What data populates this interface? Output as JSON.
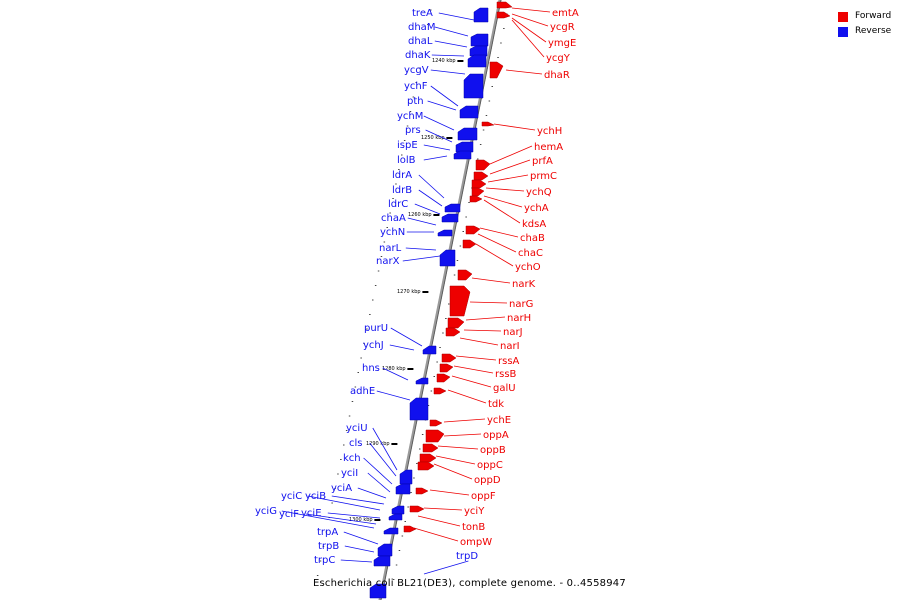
{
  "colors": {
    "forward": "#ee0000",
    "reverse": "#1010ee",
    "axis": "#888888"
  },
  "legend": [
    {
      "label": "Forward",
      "color": "#ee0000"
    },
    {
      "label": "Reverse",
      "color": "#1010ee"
    }
  ],
  "caption": "Escherichia coli BL21(DE3), complete genome. - 0..4558947",
  "kbp_markers": [
    "1240 kbp",
    "1250 kbp",
    "1260 kbp",
    "1270 kbp",
    "1280 kbp",
    "1290 kbp",
    "1300 kbp"
  ],
  "reverse_genes": [
    "treA",
    "dhaM",
    "dhaL",
    "dhaK",
    "ycgV",
    "ychF",
    "pth",
    "ychM",
    "prs",
    "ispE",
    "lolB",
    "ldrA",
    "ldrB",
    "ldrC",
    "chaA",
    "ychN",
    "narL",
    "narX",
    "purU",
    "ychJ",
    "hns",
    "adhE",
    "yciU",
    "cls",
    "kch",
    "yciI",
    "yciA",
    "yciC",
    "yciB",
    "yciG",
    "yciF",
    "yciE",
    "trpA",
    "trpB",
    "trpC",
    "trpD"
  ],
  "forward_genes": [
    "emtA",
    "ycgR",
    "ymgE",
    "ycgY",
    "dhaR",
    "ychH",
    "hemA",
    "prfA",
    "prmC",
    "ychQ",
    "ychA",
    "kdsA",
    "chaB",
    "chaC",
    "ychO",
    "narK",
    "narG",
    "narH",
    "narJ",
    "narI",
    "rssA",
    "rssB",
    "galU",
    "tdk",
    "ychE",
    "oppA",
    "oppB",
    "oppC",
    "oppD",
    "oppF",
    "yciY",
    "tonB",
    "ompW"
  ]
}
